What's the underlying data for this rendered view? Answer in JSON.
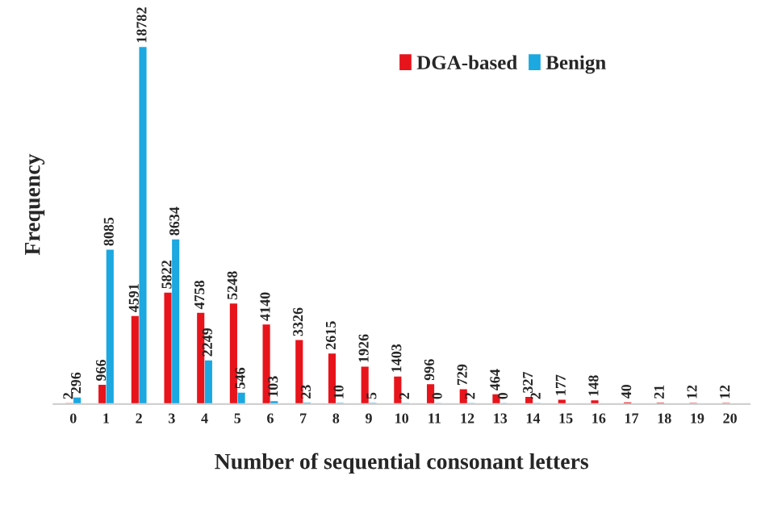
{
  "chart_data": {
    "type": "bar",
    "xlabel": "Number of sequential consonant letters",
    "ylabel": "Frequency",
    "categories": [
      "0",
      "1",
      "2",
      "3",
      "4",
      "5",
      "6",
      "7",
      "8",
      "9",
      "10",
      "11",
      "12",
      "13",
      "14",
      "15",
      "16",
      "17",
      "18",
      "19",
      "20"
    ],
    "series": [
      {
        "name": "DGA-based",
        "color": "#e8141c",
        "values": [
          2,
          966,
          4591,
          5822,
          4758,
          5248,
          4140,
          3326,
          2615,
          1926,
          1403,
          996,
          729,
          464,
          327,
          177,
          148,
          40,
          21,
          12,
          12
        ]
      },
      {
        "name": "Benign",
        "color": "#1ca8e0",
        "values": [
          296,
          8085,
          18782,
          8634,
          2249,
          546,
          103,
          23,
          10,
          5,
          2,
          0,
          2,
          0,
          2,
          null,
          null,
          null,
          null,
          null,
          null
        ]
      }
    ],
    "tick_labels": "x",
    "data_labels": true,
    "legend": "top right",
    "grid": false
  }
}
